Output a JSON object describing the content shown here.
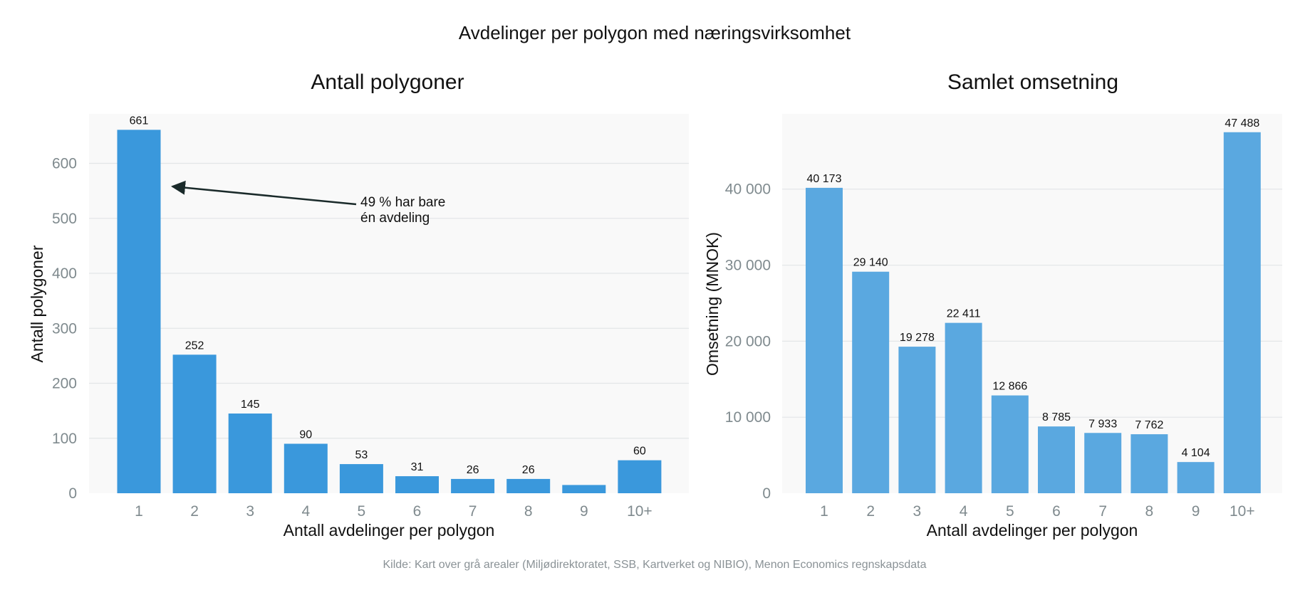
{
  "figure": {
    "title": "Avdelinger per polygon med næringsvirksomhet",
    "source": "Kilde: Kart over grå arealer (Miljødirektoratet, SSB, Kartverket og NIBIO), Menon Economics regnskapsdata"
  },
  "chart_data": [
    {
      "type": "bar",
      "title": "Antall polygoner",
      "xlabel": "Antall avdelinger per polygon",
      "ylabel": "Antall polygoner",
      "categories": [
        "1",
        "2",
        "3",
        "4",
        "5",
        "6",
        "7",
        "8",
        "9",
        "10+"
      ],
      "values": [
        661,
        252,
        145,
        90,
        53,
        31,
        26,
        26,
        15,
        60
      ],
      "data_labels": [
        "661",
        "252",
        "145",
        "90",
        "53",
        "31",
        "26",
        "26",
        "",
        "60"
      ],
      "ylim": [
        0,
        690
      ],
      "yticks": [
        0,
        100,
        200,
        300,
        400,
        500,
        600
      ],
      "ytick_labels": [
        "0",
        "100",
        "200",
        "300",
        "400",
        "500",
        "600"
      ],
      "grid": true,
      "bar_color": "#3a98dc",
      "annotation": {
        "lines": [
          "49 % har bare",
          "én avdeling"
        ],
        "target_category": "1",
        "target_value": 560
      }
    },
    {
      "type": "bar",
      "title": "Samlet omsetning",
      "xlabel": "Antall avdelinger per polygon",
      "ylabel": "Omsetning (MNOK)",
      "categories": [
        "1",
        "2",
        "3",
        "4",
        "5",
        "6",
        "7",
        "8",
        "9",
        "10+"
      ],
      "values": [
        40173,
        29140,
        19278,
        22411,
        12866,
        8785,
        7933,
        7762,
        4104,
        47488
      ],
      "data_labels": [
        "40 173",
        "29 140",
        "19 278",
        "22 411",
        "12 866",
        "8 785",
        "7 933",
        "7 762",
        "4 104",
        "47 488"
      ],
      "ylim": [
        0,
        49900
      ],
      "yticks": [
        0,
        10000,
        20000,
        30000,
        40000
      ],
      "ytick_labels": [
        "0",
        "10 000",
        "20 000",
        "30 000",
        "40 000"
      ],
      "grid": true,
      "bar_color": "#5aa8e0"
    }
  ]
}
